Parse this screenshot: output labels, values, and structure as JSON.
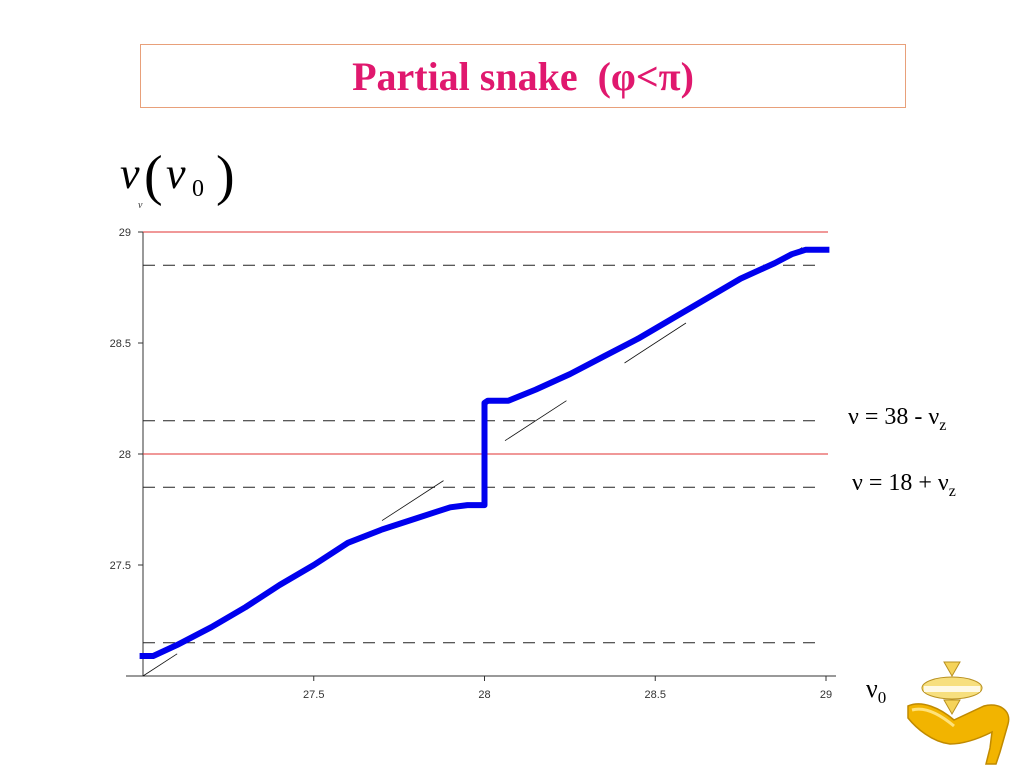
{
  "slide": {
    "title": "Partial snake  (φ<π)",
    "y_label_nu": "ν",
    "y_label_arg": "ν",
    "y_label_arg_sub": "0",
    "y_label_small": "ν",
    "x_label": "ν",
    "x_label_sub": "0",
    "eq1_text": "ν = 38 - ν",
    "eq1_sub": "z",
    "eq2_text": "ν = 18 + ν",
    "eq2_sub": "z",
    "logo_icon": "spinning-top-on-hand-icon"
  },
  "chart_data": {
    "type": "line",
    "xlim": [
      27.0,
      29.0
    ],
    "ylim": [
      27.0,
      29.0
    ],
    "x_ticks": [
      "27.5",
      "28",
      "28.5",
      "29"
    ],
    "y_ticks": [
      "27.5",
      "28",
      "28.5",
      "29"
    ],
    "x_tick_values": [
      27.5,
      28,
      28.5,
      29
    ],
    "y_tick_values": [
      27.5,
      28,
      28.5,
      29
    ],
    "series": [
      {
        "color": "#0000ee",
        "x": [
          26.99,
          27.03,
          27.1,
          27.2,
          27.3,
          27.4,
          27.5,
          27.6,
          27.7,
          27.8,
          27.86,
          27.9,
          27.95,
          28.0,
          28.0,
          28.01,
          28.07,
          28.15,
          28.25,
          28.35,
          28.45,
          28.55,
          28.65,
          28.75,
          28.85,
          28.9,
          28.94,
          29.01
        ],
        "y": [
          27.09,
          27.09,
          27.14,
          27.22,
          27.31,
          27.41,
          27.5,
          27.6,
          27.66,
          27.71,
          27.74,
          27.76,
          27.77,
          27.77,
          28.23,
          28.24,
          28.24,
          28.29,
          28.36,
          28.44,
          28.52,
          28.61,
          28.7,
          28.79,
          28.86,
          28.9,
          28.92,
          28.92
        ]
      }
    ],
    "tangent_segments": [
      {
        "x": [
          27.0,
          27.1
        ],
        "y": [
          27.0,
          27.1
        ]
      },
      {
        "x": [
          27.38,
          27.53
        ],
        "y": [
          27.38,
          27.53
        ]
      },
      {
        "x": [
          27.7,
          27.88
        ],
        "y": [
          27.7,
          27.88
        ]
      },
      {
        "x": [
          28.06,
          28.24
        ],
        "y": [
          28.06,
          28.24
        ]
      },
      {
        "x": [
          28.41,
          28.59
        ],
        "y": [
          28.41,
          28.59
        ]
      },
      {
        "x": [
          28.88,
          28.93
        ],
        "y": [
          28.88,
          28.93
        ]
      }
    ],
    "red_lines": [
      29.0,
      28.0
    ],
    "red_line_color": "#e03030",
    "dashed_lines": [
      28.85,
      28.15,
      27.85,
      27.15
    ],
    "grid": false
  }
}
